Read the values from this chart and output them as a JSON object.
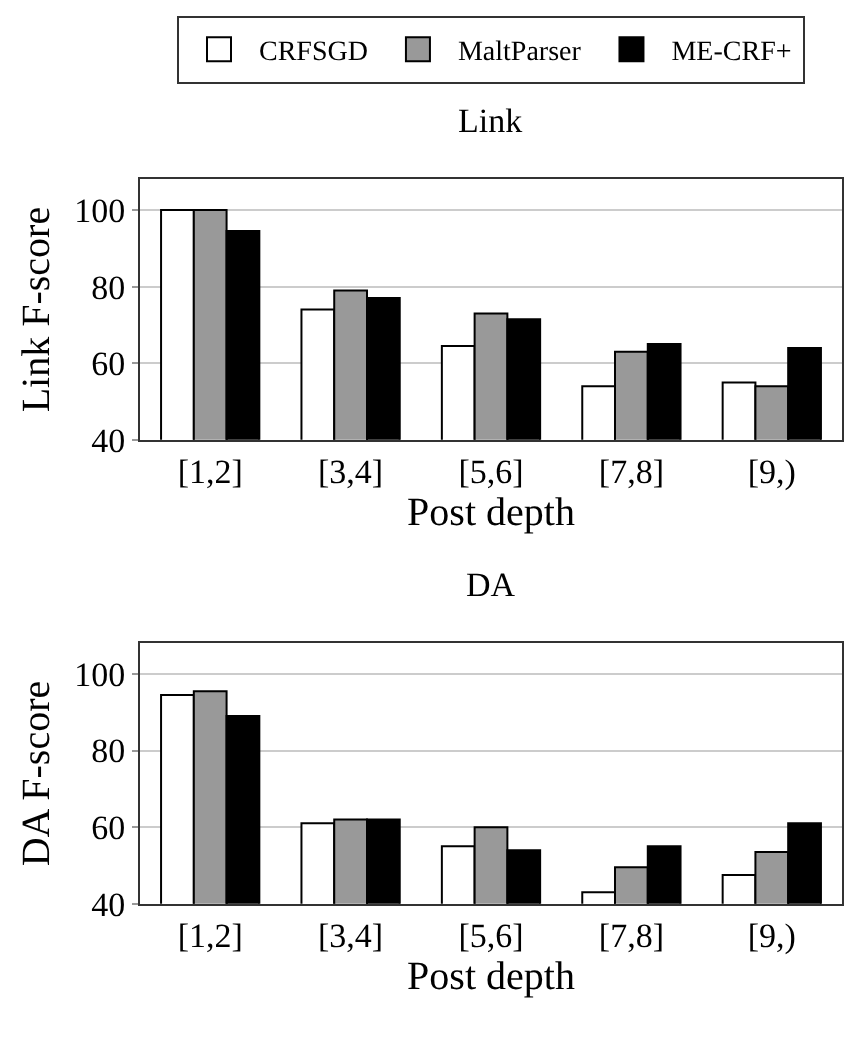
{
  "chart_data": [
    {
      "type": "bar",
      "title": "Link",
      "xlabel": "Post depth",
      "ylabel": "Link F-score",
      "categories": [
        "[1,2]",
        "[3,4]",
        "[5,6]",
        "[7,8]",
        "[9,)"
      ],
      "series": [
        {
          "name": "CRFSGD",
          "color": "#ffffff",
          "values": [
            100,
            74,
            64.5,
            54,
            55
          ]
        },
        {
          "name": "MaltParser",
          "color": "#999999",
          "values": [
            100,
            79,
            73,
            63,
            54
          ]
        },
        {
          "name": "ME-CRF+",
          "color": "#000000",
          "values": [
            94.5,
            77,
            71.5,
            65,
            64
          ]
        }
      ],
      "ylim": [
        40,
        108
      ],
      "yticks": [
        40,
        60,
        80,
        100
      ],
      "grid": "y",
      "legend": "top"
    },
    {
      "type": "bar",
      "title": "DA",
      "xlabel": "Post depth",
      "ylabel": "DA F-score",
      "categories": [
        "[1,2]",
        "[3,4]",
        "[5,6]",
        "[7,8]",
        "[9,)"
      ],
      "series": [
        {
          "color": "#ffffff",
          "values": [
            94.5,
            61,
            55,
            43,
            47.5
          ]
        },
        {
          "color": "#999999",
          "values": [
            95.5,
            62,
            60,
            49.5,
            53.5
          ]
        },
        {
          "color": "#000000",
          "values": [
            89,
            62,
            54,
            55,
            61
          ]
        }
      ],
      "ylim": [
        40,
        108
      ],
      "yticks": [
        40,
        60,
        80,
        100
      ],
      "grid": "y"
    }
  ]
}
